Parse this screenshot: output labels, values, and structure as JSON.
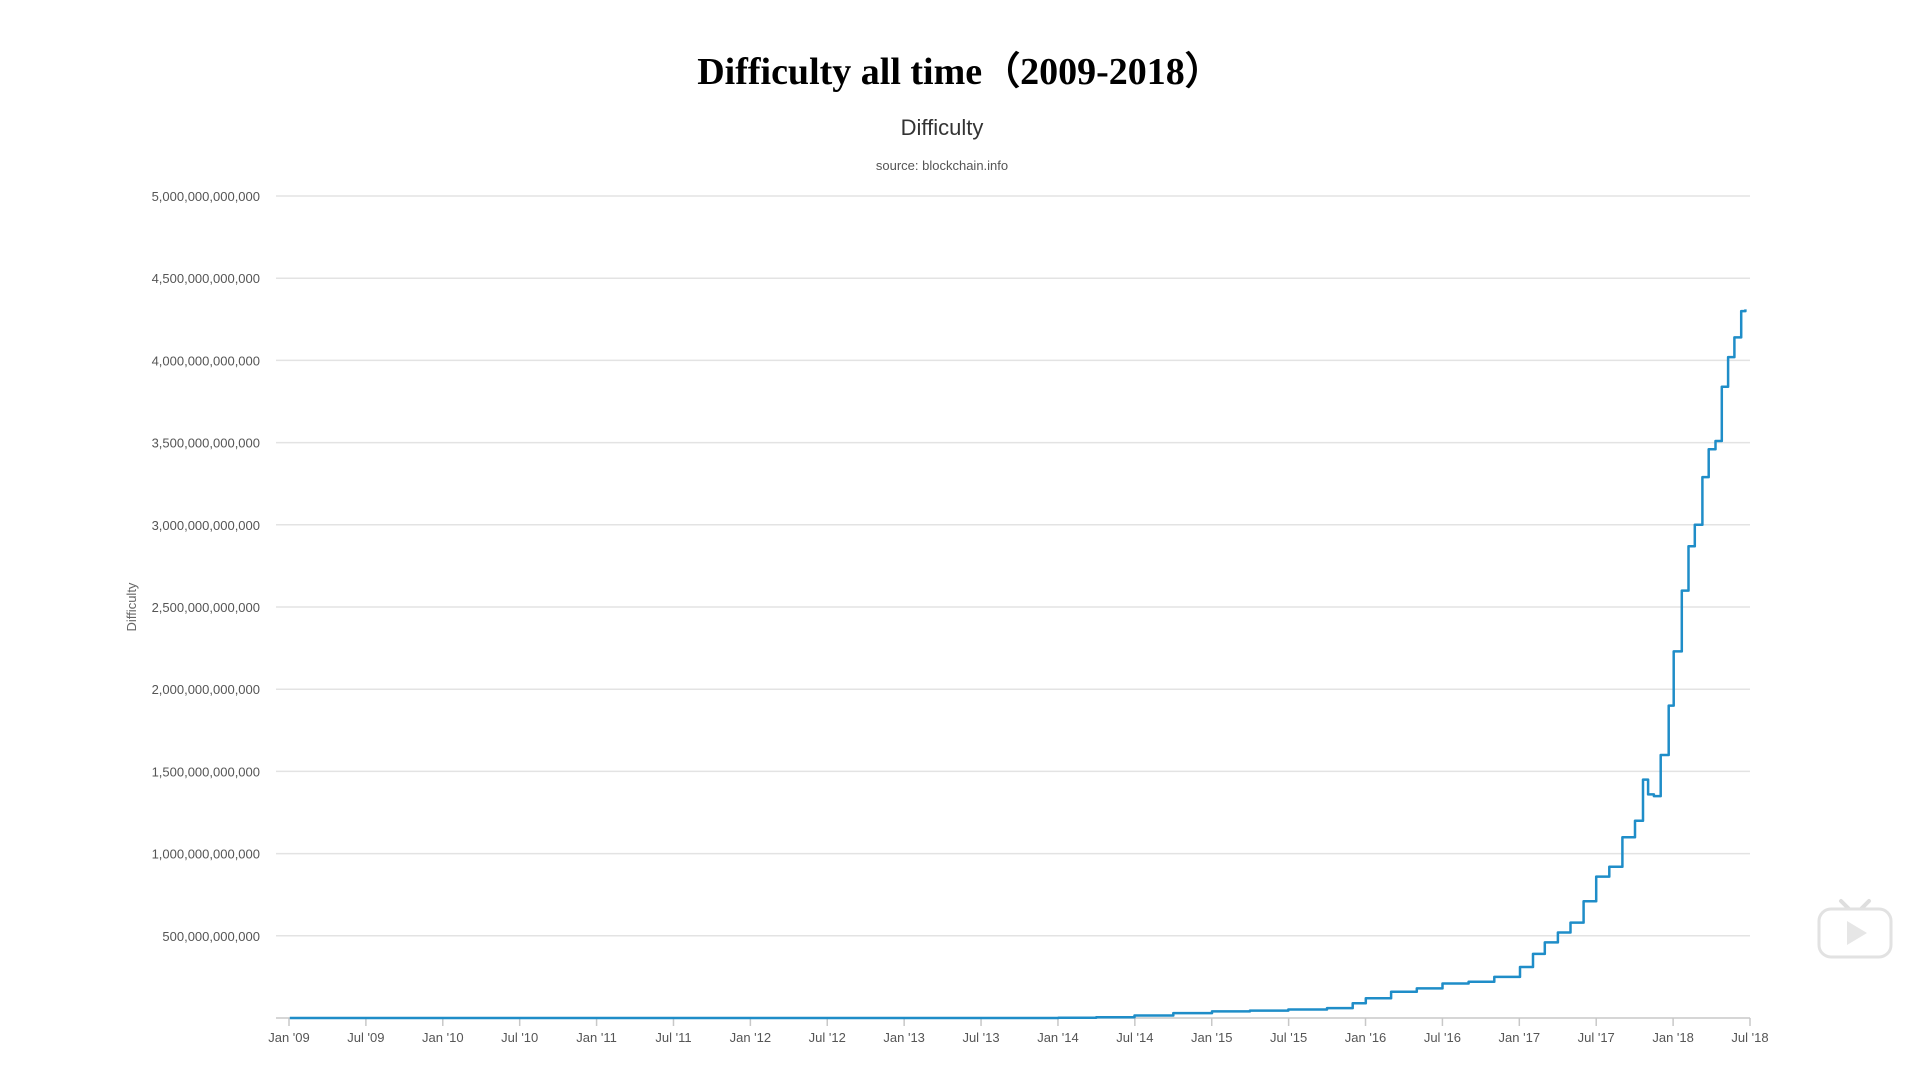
{
  "page": {
    "title": "Difficulty all time（2009-2018）"
  },
  "chart_data": {
    "type": "line",
    "title": "Difficulty",
    "subtitle": "source: blockchain.info",
    "xlabel": "",
    "ylabel": "Difficulty",
    "ylim": [
      0,
      5000000000000
    ],
    "xlim": [
      "2009-01-01",
      "2018-07-01"
    ],
    "grid": true,
    "legend": "none",
    "color": "#1f8dc8",
    "x_ticks": [
      "Jan '09",
      "Jul '09",
      "Jan '10",
      "Jul '10",
      "Jan '11",
      "Jul '11",
      "Jan '12",
      "Jul '12",
      "Jan '13",
      "Jul '13",
      "Jan '14",
      "Jul '14",
      "Jan '15",
      "Jul '15",
      "Jan '16",
      "Jul '16",
      "Jan '17",
      "Jul '17",
      "Jan '18",
      "Jul '18"
    ],
    "y_ticks": [
      "500,000,000,000",
      "1,000,000,000,000",
      "1,500,000,000,000",
      "2,000,000,000,000",
      "2,500,000,000,000",
      "3,000,000,000,000",
      "3,500,000,000,000",
      "4,000,000,000,000",
      "4,500,000,000,000",
      "5,000,000,000,000"
    ],
    "y_tick_values": [
      500000000000,
      1000000000000,
      1500000000000,
      2000000000000,
      2500000000000,
      3000000000000,
      3500000000000,
      4000000000000,
      4500000000000,
      5000000000000
    ],
    "series": [
      {
        "x": [
          "2009-01-03",
          "2013-01-01",
          "2013-07-01",
          "2014-01-01",
          "2014-04-01",
          "2014-07-01",
          "2014-10-01",
          "2015-01-01",
          "2015-04-01",
          "2015-07-01",
          "2015-10-01",
          "2015-12-01",
          "2016-01-01",
          "2016-03-01",
          "2016-05-01",
          "2016-07-01",
          "2016-09-01",
          "2016-11-01",
          "2017-01-01",
          "2017-02-01",
          "2017-03-01",
          "2017-04-01",
          "2017-05-01",
          "2017-06-01",
          "2017-07-01",
          "2017-08-01",
          "2017-09-01",
          "2017-10-01",
          "2017-10-20",
          "2017-11-01",
          "2017-11-15",
          "2017-12-01",
          "2017-12-20",
          "2018-01-01",
          "2018-01-20",
          "2018-02-05",
          "2018-02-20",
          "2018-03-10",
          "2018-03-25",
          "2018-04-10",
          "2018-04-25",
          "2018-05-10",
          "2018-05-25",
          "2018-06-10",
          "2018-06-20"
        ],
        "values": [
          1,
          3000000,
          50000000,
          1500000000,
          5000000000,
          15000000000,
          30000000000,
          40000000000,
          45000000000,
          52000000000,
          60000000000,
          90000000000,
          120000000000,
          160000000000,
          180000000000,
          210000000000,
          220000000000,
          250000000000,
          310000000000,
          390000000000,
          460000000000,
          520000000000,
          580000000000,
          710000000000,
          860000000000,
          920000000000,
          1100000000000,
          1200000000000,
          1450000000000,
          1360000000000,
          1350000000000,
          1600000000000,
          1900000000000,
          2230000000000,
          2600000000000,
          2870000000000,
          3000000000000,
          3290000000000,
          3460000000000,
          3510000000000,
          3840000000000,
          4020000000000,
          4140000000000,
          4300000000000,
          4310000000000
        ]
      }
    ]
  }
}
